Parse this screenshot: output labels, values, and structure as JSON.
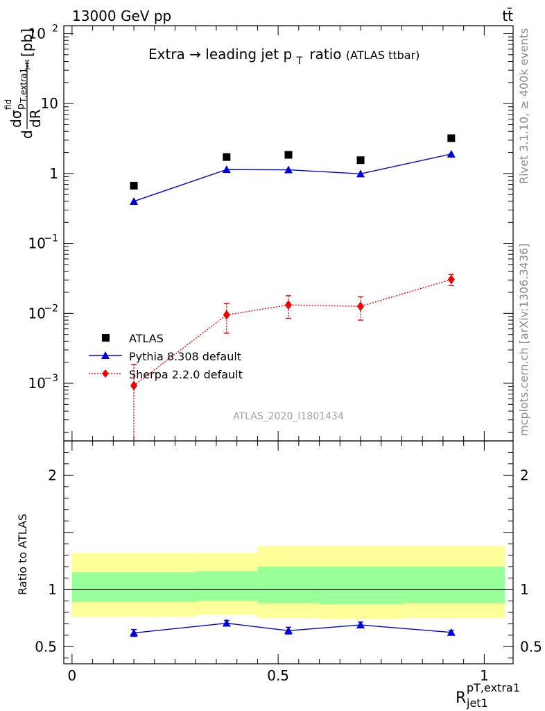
{
  "header": {
    "left": "13000 GeV pp",
    "right": "tt̄"
  },
  "title": {
    "main_prefix": "Extra",
    "arrow": "→",
    "main_rest": "leading jet p",
    "main_sub": "T",
    "main_suffix": "ratio",
    "small": "(ATLAS ttbar)"
  },
  "watermark": "ATLAS_2020_I1801434",
  "side_labels": {
    "top": "Rivet 3.1.10, ≥ 400k events",
    "bottom": "mcplots.cern.ch [arXiv:1306.3436]"
  },
  "colors": {
    "data": "#000000",
    "pythia": "#0000dd",
    "sherpa": "#ee0000",
    "band_outer": "#ffff99",
    "band_inner": "#99ff99"
  },
  "chart_data": [
    {
      "type": "scatter",
      "panel": "main",
      "yscale": "log",
      "ylim": [
        0.00015,
        130
      ],
      "xlim": [
        -0.02,
        1.07
      ],
      "ylabel": {
        "d1": "d",
        "sigma": "dσ",
        "sigma_sup": "fid",
        "p": "p",
        "p_sub": "T,extra1",
        "p_sub2": "jet1",
        "d2": "dR",
        "unit": "[pb]"
      },
      "yticks": [
        {
          "v": 100,
          "base": "10",
          "exp": "2"
        },
        {
          "v": 10,
          "base": "10",
          "exp": ""
        },
        {
          "v": 1,
          "base": "1",
          "exp": ""
        },
        {
          "v": 0.1,
          "base": "10",
          "exp": "−1"
        },
        {
          "v": 0.01,
          "base": "10",
          "exp": "−2"
        },
        {
          "v": 0.001,
          "base": "10",
          "exp": "−3"
        }
      ],
      "legend_position": "lower-left",
      "series": [
        {
          "name": "ATLAS",
          "key": "atlas",
          "marker": "square",
          "x": [
            0.15,
            0.375,
            0.525,
            0.7,
            0.92
          ],
          "y": [
            0.67,
            1.72,
            1.85,
            1.55,
            3.2
          ]
        },
        {
          "name": "Pythia 8.308 default",
          "key": "pythia",
          "marker": "triangle",
          "line": "solid",
          "x": [
            0.15,
            0.375,
            0.525,
            0.7,
            0.92
          ],
          "y": [
            0.4,
            1.14,
            1.13,
            0.99,
            1.9
          ]
        },
        {
          "name": "Sherpa 2.2.0 default",
          "key": "sherpa",
          "marker": "diamond",
          "line": "dotted",
          "x": [
            0.15,
            0.375,
            0.525,
            0.7,
            0.92
          ],
          "y": [
            0.00093,
            0.0095,
            0.0132,
            0.0126,
            0.0305
          ],
          "err_lo": [
            0.00093,
            0.0043,
            0.0047,
            0.0046,
            0.0055
          ],
          "err_hi": [
            0.00093,
            0.0043,
            0.0047,
            0.0046,
            0.0055
          ]
        }
      ]
    },
    {
      "type": "scatter",
      "panel": "ratio",
      "ylabel": "Ratio to ATLAS",
      "ylim": [
        0.35,
        2.3
      ],
      "xlim": [
        -0.02,
        1.07
      ],
      "yticks": [
        0.5,
        1,
        2
      ],
      "ytick_labels": [
        "0.5",
        "1",
        "2"
      ],
      "xticks": [
        0,
        0.5,
        1
      ],
      "xtick_labels": [
        "0",
        "0.5",
        "1"
      ],
      "xlabel": {
        "base": "R",
        "sup": "pT,extra1",
        "sub": "jet1"
      },
      "bands": [
        {
          "x0": 0.0,
          "x1": 0.3,
          "outer": [
            0.76,
            1.32
          ],
          "inner": [
            0.89,
            1.15
          ]
        },
        {
          "x0": 0.3,
          "x1": 0.45,
          "outer": [
            0.78,
            1.32
          ],
          "inner": [
            0.9,
            1.16
          ]
        },
        {
          "x0": 0.45,
          "x1": 0.6,
          "outer": [
            0.75,
            1.38
          ],
          "inner": [
            0.88,
            1.2
          ]
        },
        {
          "x0": 0.6,
          "x1": 0.8,
          "outer": [
            0.74,
            1.38
          ],
          "inner": [
            0.87,
            1.2
          ]
        },
        {
          "x0": 0.8,
          "x1": 1.05,
          "outer": [
            0.75,
            1.38
          ],
          "inner": [
            0.88,
            1.2
          ]
        }
      ],
      "series": [
        {
          "name": "Pythia 8.308 default",
          "key": "pythia",
          "marker": "triangle",
          "x": [
            0.15,
            0.375,
            0.525,
            0.7,
            0.92
          ],
          "y": [
            0.62,
            0.705,
            0.64,
            0.69,
            0.625
          ],
          "err": [
            0.03,
            0.025,
            0.03,
            0.025,
            0.015
          ]
        }
      ]
    }
  ]
}
